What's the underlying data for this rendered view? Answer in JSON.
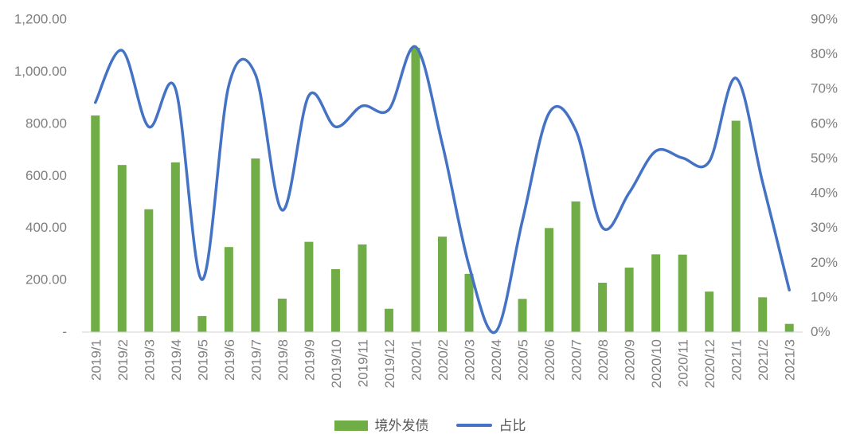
{
  "chart_data": {
    "type": "combo-bar-line",
    "title": "",
    "categories": [
      "2019/1",
      "2019/2",
      "2019/3",
      "2019/4",
      "2019/5",
      "2019/6",
      "2019/7",
      "2019/8",
      "2019/9",
      "2019/10",
      "2019/11",
      "2019/12",
      "2020/1",
      "2020/2",
      "2020/3",
      "2020/4",
      "2020/5",
      "2020/6",
      "2020/7",
      "2020/8",
      "2020/9",
      "2020/10",
      "2020/11",
      "2020/12",
      "2021/1",
      "2021/2",
      "2021/3"
    ],
    "series": [
      {
        "name": "境外发债",
        "type": "bar",
        "axis": "left",
        "color": "#70ad47",
        "values": [
          830,
          640,
          470,
          650,
          60,
          325,
          665,
          127,
          345,
          240,
          335,
          88,
          1090,
          365,
          222,
          0,
          126,
          398,
          500,
          188,
          246,
          297,
          296,
          154,
          810,
          132,
          30
        ]
      },
      {
        "name": "占比",
        "type": "line",
        "axis": "right",
        "color": "#4472c4",
        "unit": "%",
        "values": [
          66,
          81,
          59,
          70,
          15,
          71,
          74,
          35,
          68,
          59,
          65,
          64,
          82,
          54,
          19,
          0,
          32,
          63,
          58,
          30,
          40,
          52,
          50,
          49,
          73,
          43,
          12
        ]
      }
    ],
    "left_axis": {
      "min": 0,
      "max": 1200,
      "step": 200,
      "tick_labels": [
        "-",
        "200.00",
        "400.00",
        "600.00",
        "800.00",
        "1,000.00",
        "1,200.00"
      ]
    },
    "right_axis": {
      "min": 0,
      "max": 90,
      "step": 10,
      "tick_labels": [
        "0%",
        "10%",
        "20%",
        "30%",
        "40%",
        "50%",
        "60%",
        "70%",
        "80%",
        "90%"
      ]
    },
    "grid": false,
    "legend_position": "bottom",
    "colors": {
      "tick_text": "#7f7f7f",
      "legend_text": "#595959",
      "axis_line": "#d9d9d9",
      "background": "#ffffff"
    }
  }
}
